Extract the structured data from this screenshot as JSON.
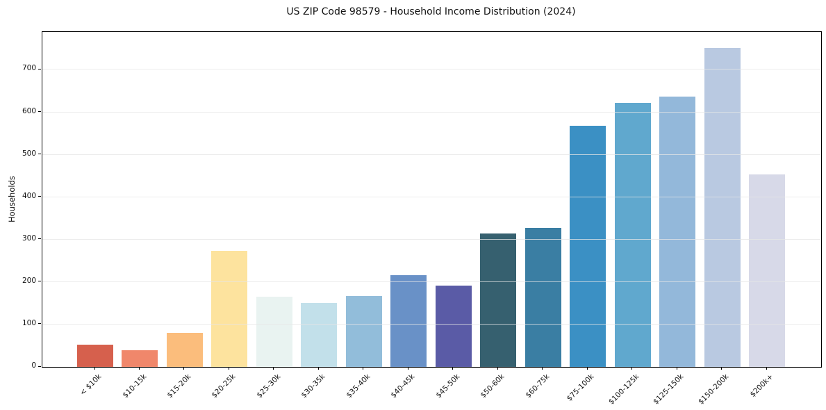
{
  "figure": {
    "title": "US ZIP Code 98579 - Household Income Distribution (2024)"
  },
  "chart_data": {
    "type": "bar",
    "title": "US ZIP Code 98579 - Household Income Distribution (2024)",
    "xlabel": "",
    "ylabel": "Households",
    "categories": [
      "< $10k",
      "$10-15k",
      "$15-20k",
      "$20-25k",
      "$25-30k",
      "$30-35k",
      "$35-40k",
      "$40-45k",
      "$45-50k",
      "$50-60k",
      "$60-75k",
      "$75-100k",
      "$100-125k",
      "$125-150k",
      "$150-200k",
      "$200k+"
    ],
    "values": [
      53,
      40,
      80,
      274,
      165,
      151,
      167,
      216,
      191,
      314,
      328,
      568,
      622,
      637,
      752,
      453
    ],
    "bar_colors": [
      "#d6604d",
      "#f0876b",
      "#fbbd7c",
      "#fde39e",
      "#e9f3f1",
      "#c2e0ea",
      "#92bdda",
      "#6991c7",
      "#5a5ba6",
      "#36606f",
      "#3a7ea3",
      "#3b90c4",
      "#60a8ce",
      "#93b8da",
      "#b9c9e1",
      "#d7d9e8"
    ],
    "yticks": [
      0,
      100,
      200,
      300,
      400,
      500,
      600,
      700
    ],
    "ylim": [
      0,
      789
    ],
    "grid": "horizontal-only",
    "grid_color": "#e5e5e5",
    "spine_color": "#000000",
    "background": "#ffffff",
    "legend": "none",
    "x_tick_rotation_deg": 45
  }
}
